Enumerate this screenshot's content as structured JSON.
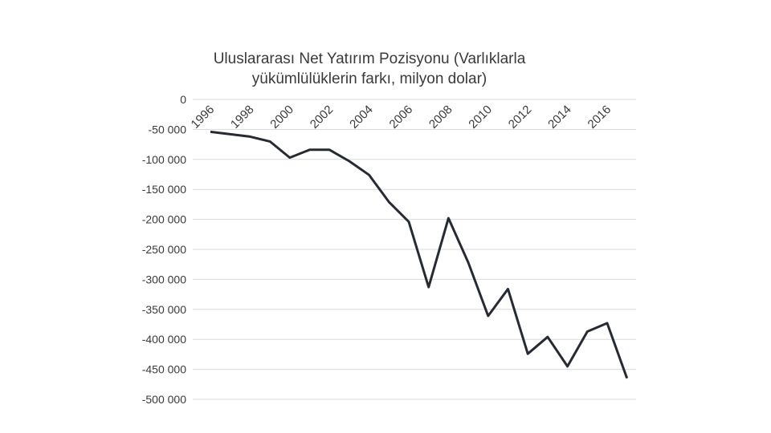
{
  "chart_data": {
    "type": "line",
    "title_lines": [
      "Uluslararası Net Yatırım Pozisyonu (Varlıklarla",
      "yükümlülüklerin farkı, milyon dolar)"
    ],
    "xlabel": "",
    "ylabel": "",
    "ylim": [
      -500000,
      0
    ],
    "yticks": [
      0,
      -50000,
      -100000,
      -150000,
      -200000,
      -250000,
      -300000,
      -350000,
      -400000,
      -450000,
      -500000
    ],
    "ytick_labels": [
      "0",
      "-50 000",
      "-100 000",
      "-150 000",
      "-200 000",
      "-250 000",
      "-300 000",
      "-350 000",
      "-400 000",
      "-450 000",
      "-500 000"
    ],
    "x": [
      "1996",
      "1997",
      "1998",
      "1999",
      "2000",
      "2001",
      "2002",
      "2003",
      "2004",
      "2005",
      "2006",
      "2007",
      "2008",
      "2009",
      "2010",
      "2011",
      "2012",
      "2013",
      "2014",
      "2015",
      "2016",
      "2017"
    ],
    "xtick_labels": [
      "1996",
      "1998",
      "2000",
      "2002",
      "2004",
      "2006",
      "2008",
      "2010",
      "2012",
      "2014",
      "2016"
    ],
    "grid": true,
    "series": [
      {
        "color": "#262a33",
        "values": [
          -54000,
          -58000,
          -62000,
          -70000,
          -97000,
          -84000,
          -84000,
          -103000,
          -126000,
          -171000,
          -204000,
          -313000,
          -198000,
          -272000,
          -361000,
          -316000,
          -424000,
          -396000,
          -445000,
          -387000,
          -373000,
          -465000
        ]
      }
    ]
  }
}
